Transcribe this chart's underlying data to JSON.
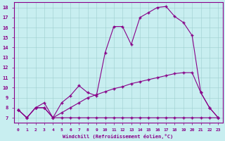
{
  "xlabel": "Windchill (Refroidissement éolien,°C)",
  "bg_color": "#c8eef0",
  "line_color": "#880088",
  "grid_color": "#9ecece",
  "xlim": [
    -0.5,
    23.5
  ],
  "ylim": [
    6.5,
    18.5
  ],
  "xticks": [
    0,
    1,
    2,
    3,
    4,
    5,
    6,
    7,
    8,
    9,
    10,
    11,
    12,
    13,
    14,
    15,
    16,
    17,
    18,
    19,
    20,
    21,
    22,
    23
  ],
  "yticks": [
    7,
    8,
    9,
    10,
    11,
    12,
    13,
    14,
    15,
    16,
    17,
    18
  ],
  "line1_x": [
    0,
    1,
    2,
    3,
    4,
    5,
    6,
    7,
    8,
    9,
    10,
    11,
    12,
    13,
    14,
    15,
    16,
    17,
    18,
    19,
    20,
    21,
    22,
    23
  ],
  "line1_y": [
    7.8,
    7.0,
    8.0,
    8.0,
    7.0,
    7.0,
    7.0,
    7.0,
    7.0,
    7.0,
    7.0,
    7.0,
    7.0,
    7.0,
    7.0,
    7.0,
    7.0,
    7.0,
    7.0,
    7.0,
    7.0,
    7.0,
    7.0,
    7.0
  ],
  "line2_x": [
    0,
    1,
    2,
    3,
    4,
    5,
    6,
    7,
    8,
    9,
    10,
    11,
    12,
    13,
    14,
    15,
    16,
    17,
    18,
    19,
    20,
    21,
    22,
    23
  ],
  "line2_y": [
    7.8,
    7.0,
    8.0,
    8.0,
    7.0,
    7.5,
    8.0,
    8.5,
    9.0,
    9.3,
    9.6,
    9.9,
    10.1,
    10.4,
    10.6,
    10.8,
    11.0,
    11.2,
    11.4,
    11.5,
    11.5,
    9.5,
    8.0,
    7.0
  ],
  "line3_x": [
    0,
    1,
    2,
    3,
    4,
    5,
    6,
    7,
    8,
    9,
    10,
    11,
    12,
    13,
    14,
    15,
    16,
    17,
    18,
    19,
    20,
    21,
    22,
    23
  ],
  "line3_y": [
    7.8,
    7.0,
    8.0,
    8.5,
    7.0,
    8.5,
    9.2,
    10.2,
    9.5,
    9.2,
    13.5,
    16.1,
    16.1,
    14.3,
    17.0,
    17.5,
    18.0,
    18.1,
    17.1,
    16.5,
    15.2,
    9.5,
    8.0,
    7.0
  ]
}
